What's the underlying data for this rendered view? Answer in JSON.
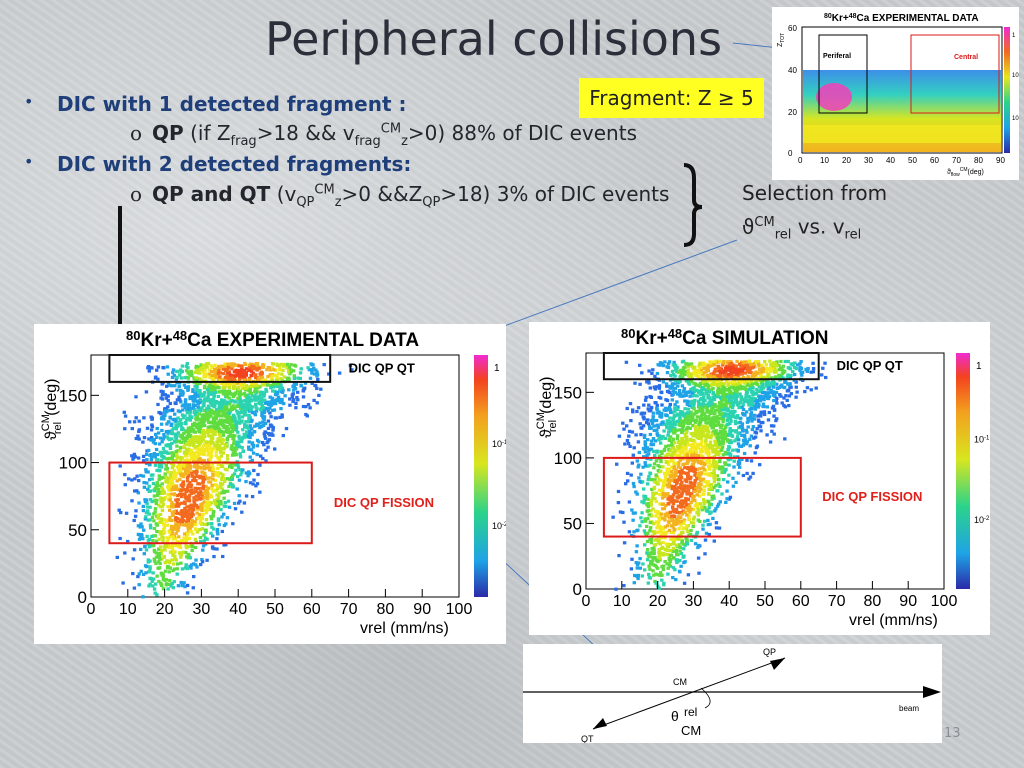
{
  "slide": {
    "title": "Peripheral collisions",
    "page_number": "13",
    "fragment_box": "Fragment: Z ≥ 5",
    "selection_note": {
      "line1": "Selection from",
      "theta": "ϑ",
      "cm": "CM",
      "rel1": "rel",
      "vs": " vs. v",
      "rel2": "rel"
    }
  },
  "bullets": [
    {
      "text": "DIC with 1 detected fragment :"
    },
    {
      "qp": "QP",
      "pre": "(if Z",
      "frag1": "frag",
      "mid": ">18 && v",
      "frag2": "frag",
      "cm": "CM",
      "z": "z",
      "post": ">0) 88% of DIC events"
    },
    {
      "text": "DIC with 2 detected fragments:"
    },
    {
      "qp": "QP and QT",
      "pre": "(v",
      "qp1": "QP",
      "cm": "CM",
      "z": "z",
      "mid": ">0 &&Z",
      "qp2": "QP",
      "post": ">18) 3% of DIC events"
    }
  ],
  "thumbnail": {
    "title_pre": "80",
    "title_kr": "Kr+",
    "title_sup": "48",
    "title_post": "Ca EXPERIMENTAL DATA",
    "ylabel": "Z",
    "ysub": "TOT",
    "xlabel": "ϑ",
    "xlabel_sub": "flow",
    "xlabel_sup": "CM",
    "xlabel_unit": "(deg)",
    "box_peripheral": "Periferal",
    "box_central": "Central",
    "yticks": [
      "0",
      "20",
      "40",
      "60"
    ],
    "xticks": [
      "0",
      "10",
      "20",
      "30",
      "40",
      "50",
      "60",
      "70",
      "80",
      "90"
    ],
    "ztick_mid": "10",
    "ztick_mid_exp": "-1",
    "ztick_low": "10",
    "ztick_low_exp": "-2",
    "ztick_top": "1"
  },
  "plots": [
    {
      "title_sup1": "80",
      "title_a": "Kr+",
      "title_sup2": "48",
      "title_b": "Ca EXPERIMENTAL DATA",
      "ylabel": "ϑ",
      "ylabel_sup": "CM",
      "ylabel_sub": "rel",
      "ylabel_unit": "(deg)",
      "xlabel": "vrel (mm/ns)",
      "label_top": "DIC QP QT",
      "label_mid": "DIC QP FISSION",
      "yticks": [
        "0",
        "50",
        "100",
        "150"
      ],
      "xticks": [
        "0",
        "10",
        "20",
        "30",
        "40",
        "50",
        "60",
        "70",
        "80",
        "90",
        "100"
      ],
      "ztick_top": "1",
      "ztick_mid": "10",
      "ztick_mid_exp": "-1",
      "ztick_low": "10",
      "ztick_low_exp": "-2"
    },
    {
      "title_sup1": "80",
      "title_a": "Kr+",
      "title_sup2": "48",
      "title_b": "Ca SIMULATION",
      "ylabel": "ϑ",
      "ylabel_sup": "CM",
      "ylabel_sub": "rel",
      "ylabel_unit": "(deg)",
      "xlabel": "vrel (mm/ns)",
      "label_top": "DIC QP QT",
      "label_mid": "DIC QP FISSION",
      "yticks": [
        "0",
        "50",
        "100",
        "150"
      ],
      "xticks": [
        "0",
        "10",
        "20",
        "30",
        "40",
        "50",
        "60",
        "70",
        "80",
        "90",
        "100"
      ],
      "ztick_top": "1",
      "ztick_mid": "10",
      "ztick_mid_exp": "-1",
      "ztick_low": "10",
      "ztick_low_exp": "-2"
    }
  ],
  "diagram": {
    "qp": "QP",
    "qt": "QT",
    "cm": "CM",
    "beam": "beam",
    "theta": "θ",
    "rel": "rel",
    "cm2": "CM"
  },
  "colors": {
    "bullet_text": "#1f3f7a",
    "fragment_box": "#ffff22",
    "box_red": "#dd1a1a",
    "label_red": "#e0201a"
  }
}
